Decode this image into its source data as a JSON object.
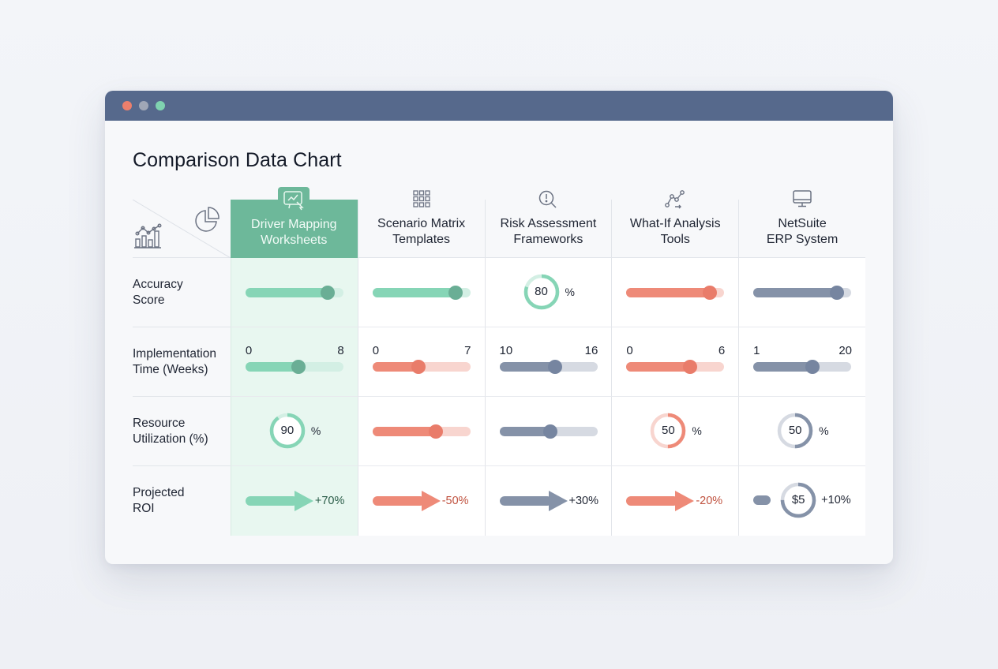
{
  "window": {
    "controls": [
      {
        "name": "close",
        "color": "#ec7f6c"
      },
      {
        "name": "minimize",
        "color": "#a0a7b6"
      },
      {
        "name": "maximize",
        "color": "#7fd3b0"
      }
    ],
    "titlebar_color": "#56698c"
  },
  "page": {
    "title": "Comparison Data Chart"
  },
  "colors": {
    "green": "#86d5b6",
    "green_dark": "#6aae95",
    "green_light": "#d3efe4",
    "coral": "#ee8a78",
    "coral_dark": "#e97c6a",
    "coral_light": "#f8d5cf",
    "slate": "#8592a8",
    "slate_dark": "#7685a0",
    "slate_light": "#d6dae2",
    "active_header": "#6db89a",
    "active_column_bg": "#e8f7f0"
  },
  "corner": {
    "icons": [
      "line-bar-chart-icon",
      "pie-chart-icon"
    ]
  },
  "columns": [
    {
      "label_line1": "Driver Mapping",
      "label_line2": "Worksheets",
      "icon": "presentation-chart-icon",
      "active": true
    },
    {
      "label_line1": "Scenario Matrix",
      "label_line2": "Templates",
      "icon": "grid-matrix-icon",
      "active": false
    },
    {
      "label_line1": "Risk Assessment",
      "label_line2": "Frameworks",
      "icon": "alert-search-icon",
      "active": false
    },
    {
      "label_line1": "What-If Analysis",
      "label_line2": "Tools",
      "icon": "path-nodes-icon",
      "active": false
    },
    {
      "label_line1": "NetSuite",
      "label_line2": "ERP System",
      "icon": "monitor-icon",
      "active": false
    }
  ],
  "rows": [
    {
      "label_line1": "Accuracy",
      "label_line2": "Score"
    },
    {
      "label_line1": "Implementation",
      "label_line2": "Time (Weeks)"
    },
    {
      "label_line1": "Resource",
      "label_line2": "Utilization (%)"
    },
    {
      "label_line1": "Projected",
      "label_line2": "ROI"
    }
  ],
  "cells": {
    "accuracy": [
      {
        "type": "slider",
        "color": "green",
        "value_pct": 84
      },
      {
        "type": "slider",
        "color": "green",
        "value_pct": 85
      },
      {
        "type": "ring",
        "color": "green",
        "value": "80",
        "unit": "%",
        "pct": 80
      },
      {
        "type": "slider",
        "color": "coral",
        "value_pct": 85
      },
      {
        "type": "slider",
        "color": "slate",
        "value_pct": 85
      }
    ],
    "implementation": [
      {
        "type": "range",
        "color": "green",
        "min": "0",
        "max": "8",
        "value_pct": 54
      },
      {
        "type": "range",
        "color": "coral",
        "min": "0",
        "max": "7",
        "value_pct": 47
      },
      {
        "type": "range",
        "color": "slate",
        "min": "10",
        "max": "16",
        "value_pct": 57
      },
      {
        "type": "range",
        "color": "coral",
        "min": "0",
        "max": "6",
        "value_pct": 65
      },
      {
        "type": "range",
        "color": "slate",
        "min": "1",
        "max": "20",
        "value_pct": 60
      }
    ],
    "resource": [
      {
        "type": "ring",
        "color": "green",
        "value": "90",
        "unit": "%",
        "pct": 90
      },
      {
        "type": "slider",
        "color": "coral",
        "value_pct": 65
      },
      {
        "type": "slider",
        "color": "slate",
        "value_pct": 52
      },
      {
        "type": "ring",
        "color": "coral",
        "value": "50",
        "unit": "%",
        "pct": 50
      },
      {
        "type": "ring",
        "color": "slate",
        "value": "50",
        "unit": "%",
        "pct": 50
      }
    ],
    "roi": [
      {
        "type": "arrow",
        "color": "green",
        "value": "+70%",
        "text_color": "#2a5c48"
      },
      {
        "type": "arrow",
        "color": "coral",
        "value": "-50%",
        "text_color": "#c0523f"
      },
      {
        "type": "arrow",
        "color": "slate",
        "value": "+30%",
        "text_color": "#1f2533"
      },
      {
        "type": "arrow",
        "color": "coral",
        "value": "-20%",
        "text_color": "#c0523f"
      },
      {
        "type": "pill-ring",
        "color": "slate",
        "ring_value": "$5",
        "value": "+10%",
        "text_color": "#1f2533",
        "pct": 75
      }
    ]
  },
  "chart_data": {
    "type": "table",
    "title": "Comparison Data Chart",
    "columns": [
      "Driver Mapping Worksheets",
      "Scenario Matrix Templates",
      "Risk Assessment Frameworks",
      "What-If Analysis Tools",
      "NetSuite ERP System"
    ],
    "rows": [
      {
        "metric": "Accuracy Score",
        "values": [
          "~85% (slider)",
          "~85% (slider)",
          "80%",
          "~85% (slider)",
          "~85% (slider)"
        ]
      },
      {
        "metric": "Implementation Time (Weeks)",
        "ranges": [
          [
            0,
            8
          ],
          [
            0,
            7
          ],
          [
            10,
            16
          ],
          [
            0,
            6
          ],
          [
            1,
            20
          ]
        ]
      },
      {
        "metric": "Resource Utilization (%)",
        "values": [
          "90%",
          "~65% (slider)",
          "~52% (slider)",
          "50%",
          "50%"
        ]
      },
      {
        "metric": "Projected ROI",
        "values": [
          "+70%",
          "-50%",
          "+30%",
          "-20%",
          "+10% ($5)"
        ]
      }
    ],
    "highlighted_column": "Driver Mapping Worksheets"
  }
}
